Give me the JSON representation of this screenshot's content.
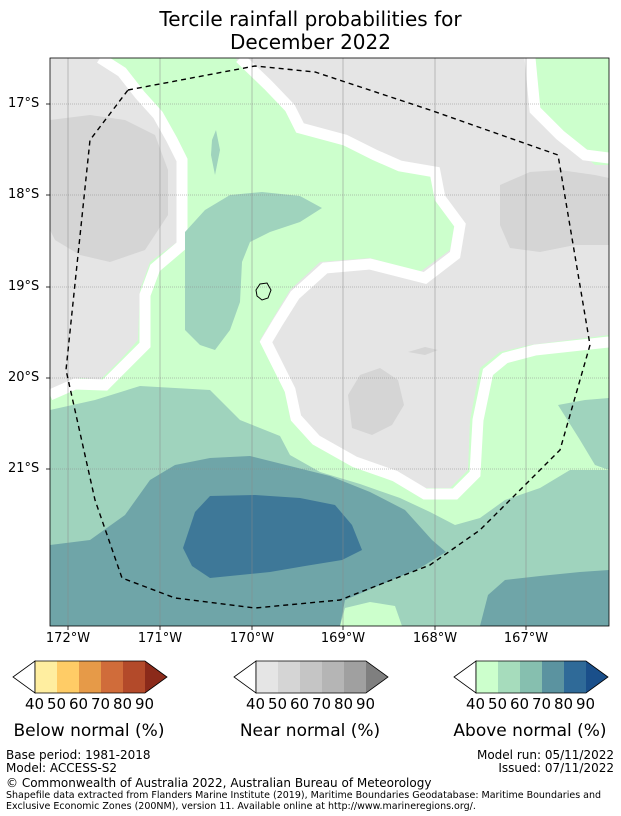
{
  "title": {
    "line1": "Tercile rainfall probabilities for",
    "line2": "December 2022"
  },
  "map": {
    "latitude_labels": [
      "17°S",
      "18°S",
      "19°S",
      "20°S",
      "21°S"
    ],
    "longitude_labels": [
      "172°W",
      "171°W",
      "170°W",
      "169°W",
      "168°W",
      "167°W"
    ],
    "colors": {
      "above_40_50": "#ccffcc",
      "above_50_60": "#9fd3bd",
      "above_60_70": "#6fa5a8",
      "above_70_80": "#3e7898",
      "near_40_50": "#e5e5e5",
      "near_50_60": "#d5d5d5",
      "eez_boundary": "#000000"
    }
  },
  "legends": {
    "below": {
      "title": "Below normal (%)",
      "ticks": [
        "40",
        "50",
        "60",
        "70",
        "80",
        "90"
      ],
      "colors": [
        "#ffeea0",
        "#ffcc66",
        "#e69a48",
        "#d06c3a",
        "#b34a2a",
        "#8b2a1a"
      ]
    },
    "near": {
      "title": "Near normal (%)",
      "ticks": [
        "40",
        "50",
        "60",
        "70",
        "80",
        "90"
      ],
      "colors": [
        "#e5e5e5",
        "#d5d5d5",
        "#c5c5c5",
        "#b5b5b5",
        "#a0a0a0",
        "#7f7f7f"
      ]
    },
    "above": {
      "title": "Above normal (%)",
      "ticks": [
        "40",
        "50",
        "60",
        "70",
        "80",
        "90"
      ],
      "colors": [
        "#ccffcc",
        "#a6dcbc",
        "#86bfaf",
        "#5b93a0",
        "#2f6a98",
        "#1a4f8a"
      ]
    }
  },
  "footer": {
    "base_period": "Base period: 1981-2018",
    "model": "Model: ACCESS-S2",
    "model_run": "Model run: 05/11/2022",
    "issued": "Issued: 07/11/2022",
    "copyright": "© Commonwealth of Australia 2022, Australian Bureau of Meteorology",
    "shapefile_line1": "Shapefile data extracted from Flanders Marine Institute (2019), Maritime Boundaries Geodatabase: Maritime Boundaries and",
    "shapefile_line2": "Exclusive Economic Zones (200NM), version 11. Available online at http://www.marineregions.org/."
  }
}
